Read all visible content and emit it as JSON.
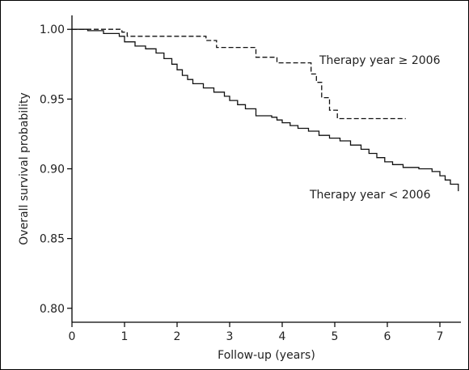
{
  "chart_data": {
    "type": "line",
    "title": "",
    "xlabel": "Follow-up (years)",
    "ylabel": "Overall survival probability",
    "xlim": [
      0,
      7.4
    ],
    "ylim": [
      0.79,
      1.01
    ],
    "xticks": [
      0,
      1,
      2,
      3,
      4,
      5,
      6,
      7
    ],
    "yticks": [
      0.8,
      0.85,
      0.9,
      0.95,
      1.0
    ],
    "ytick_labels": [
      "0.80",
      "0.85",
      "0.90",
      "0.95",
      "1.00"
    ],
    "grid": false,
    "series": [
      {
        "name": "Therapy year ≥ 2006",
        "style": "dashed",
        "step": true,
        "x": [
          0,
          0.95,
          1.05,
          2.55,
          2.75,
          3.5,
          3.9,
          4.55,
          4.65,
          4.75,
          4.9,
          5.05,
          6.35
        ],
        "y": [
          1.0,
          0.998,
          0.995,
          0.992,
          0.987,
          0.98,
          0.976,
          0.968,
          0.962,
          0.951,
          0.942,
          0.936,
          0.936
        ]
      },
      {
        "name": "Therapy year < 2006",
        "style": "solid",
        "step": true,
        "x": [
          0,
          0.3,
          0.6,
          0.9,
          1.0,
          1.2,
          1.4,
          1.6,
          1.75,
          1.9,
          2.0,
          2.1,
          2.2,
          2.3,
          2.5,
          2.7,
          2.9,
          3.0,
          3.15,
          3.3,
          3.5,
          3.8,
          3.9,
          4.0,
          4.15,
          4.3,
          4.5,
          4.7,
          4.9,
          5.1,
          5.3,
          5.5,
          5.65,
          5.8,
          5.95,
          6.1,
          6.3,
          6.6,
          6.85,
          7.0,
          7.1,
          7.2,
          7.35
        ],
        "y": [
          1.0,
          0.999,
          0.997,
          0.995,
          0.991,
          0.988,
          0.986,
          0.983,
          0.979,
          0.975,
          0.971,
          0.967,
          0.964,
          0.961,
          0.958,
          0.955,
          0.952,
          0.949,
          0.946,
          0.943,
          0.938,
          0.937,
          0.935,
          0.933,
          0.931,
          0.929,
          0.927,
          0.924,
          0.922,
          0.92,
          0.917,
          0.914,
          0.911,
          0.908,
          0.905,
          0.903,
          0.901,
          0.9,
          0.898,
          0.895,
          0.892,
          0.889,
          0.884
        ]
      }
    ],
    "annotations": [
      "Therapy year ≥ 2006",
      "Therapy year < 2006"
    ]
  }
}
